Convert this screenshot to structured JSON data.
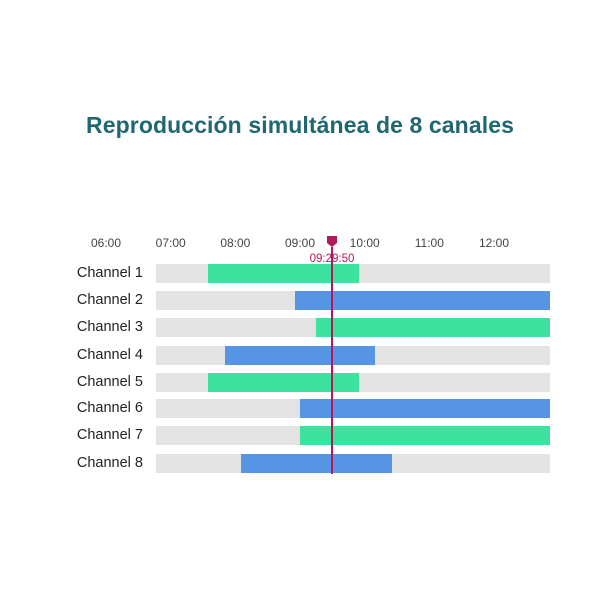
{
  "title": "Reproducción simultánea de 8 canales",
  "colors": {
    "title": "#1f6773",
    "track": "#e3e3e3",
    "green": "#3ee29f",
    "blue": "#5595e4",
    "playhead": "#b2195b"
  },
  "timeline": {
    "hours": [
      "06:00",
      "07:00",
      "08:00",
      "09:00",
      "10:00",
      "11:00",
      "12:00"
    ],
    "playhead_time": "09:29:50"
  },
  "channels": [
    {
      "label": "Channel 1",
      "color": "green",
      "start": "07:35",
      "end": "09:55"
    },
    {
      "label": "Channel 2",
      "color": "blue",
      "start": "08:55",
      "end": "13:00"
    },
    {
      "label": "Channel 3",
      "color": "green",
      "start": "09:15",
      "end": "13:00"
    },
    {
      "label": "Channel 4",
      "color": "blue",
      "start": "07:50",
      "end": "10:10"
    },
    {
      "label": "Channel 5",
      "color": "green",
      "start": "07:35",
      "end": "09:55"
    },
    {
      "label": "Channel 6",
      "color": "blue",
      "start": "09:00",
      "end": "13:00"
    },
    {
      "label": "Channel 7",
      "color": "green",
      "start": "09:00",
      "end": "13:00"
    },
    {
      "label": "Channel 8",
      "color": "blue",
      "start": "08:05",
      "end": "10:25"
    }
  ]
}
